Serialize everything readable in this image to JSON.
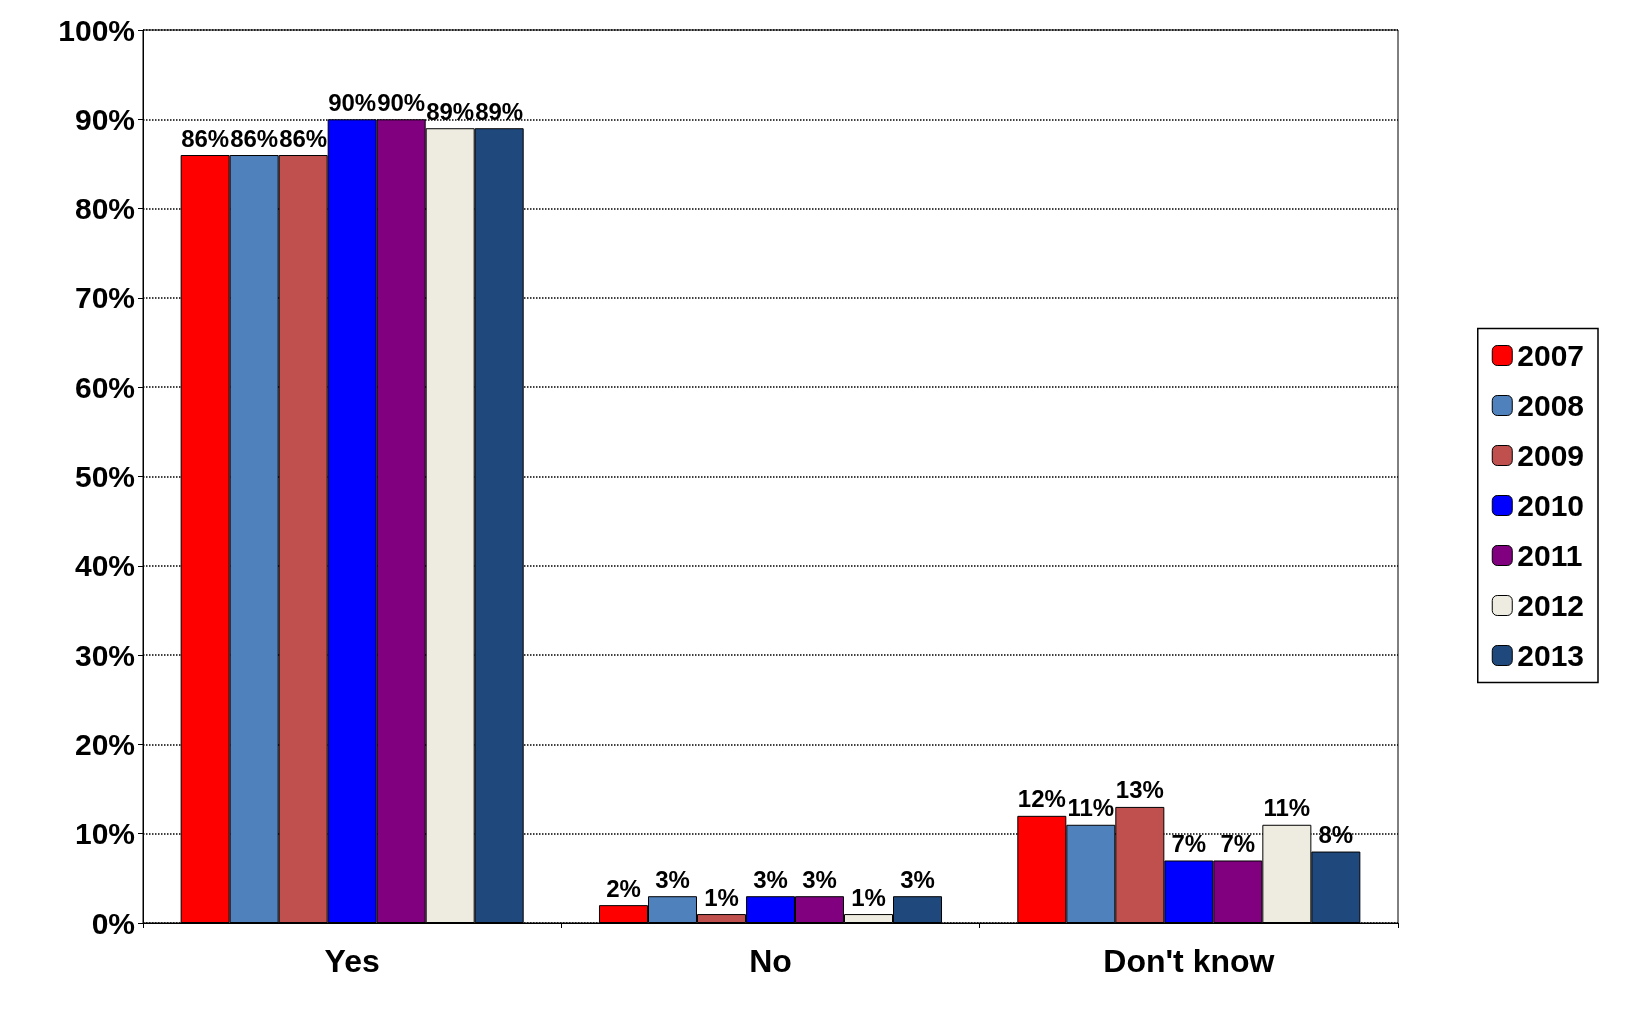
{
  "chart_data": {
    "type": "bar",
    "categories": [
      "Yes",
      "No",
      "Don't know"
    ],
    "series": [
      {
        "name": "2007",
        "color": "#ff0000",
        "values": [
          86,
          2,
          12
        ],
        "value_labels": [
          "86%",
          "2%",
          "12%"
        ]
      },
      {
        "name": "2008",
        "color": "#4f81bd",
        "values": [
          86,
          3,
          11
        ],
        "value_labels": [
          "86%",
          "3%",
          "11%"
        ]
      },
      {
        "name": "2009",
        "color": "#c0504d",
        "values": [
          86,
          1,
          13
        ],
        "value_labels": [
          "86%",
          "1%",
          "13%"
        ]
      },
      {
        "name": "2010",
        "color": "#0000ff",
        "values": [
          90,
          3,
          7
        ],
        "value_labels": [
          "90%",
          "3%",
          "7%"
        ]
      },
      {
        "name": "2011",
        "color": "#800080",
        "values": [
          90,
          3,
          7
        ],
        "value_labels": [
          "90%",
          "3%",
          "7%"
        ]
      },
      {
        "name": "2012",
        "color": "#eeece1",
        "values": [
          89,
          1,
          11
        ],
        "value_labels": [
          "89%",
          "1%",
          "11%"
        ]
      },
      {
        "name": "2013",
        "color": "#1f497d",
        "values": [
          89,
          3,
          8
        ],
        "value_labels": [
          "89%",
          "3%",
          "8%"
        ]
      }
    ],
    "ylim": [
      0,
      100
    ],
    "yticks": [
      {
        "value": 0,
        "label": "0%"
      },
      {
        "value": 10,
        "label": "10%"
      },
      {
        "value": 20,
        "label": "20%"
      },
      {
        "value": 30,
        "label": "30%"
      },
      {
        "value": 40,
        "label": "40%"
      },
      {
        "value": 50,
        "label": "50%"
      },
      {
        "value": 60,
        "label": "60%"
      },
      {
        "value": 70,
        "label": "70%"
      },
      {
        "value": 80,
        "label": "80%"
      },
      {
        "value": 90,
        "label": "90%"
      },
      {
        "value": 100,
        "label": "100%"
      }
    ],
    "grid": "y",
    "legend": "right"
  }
}
